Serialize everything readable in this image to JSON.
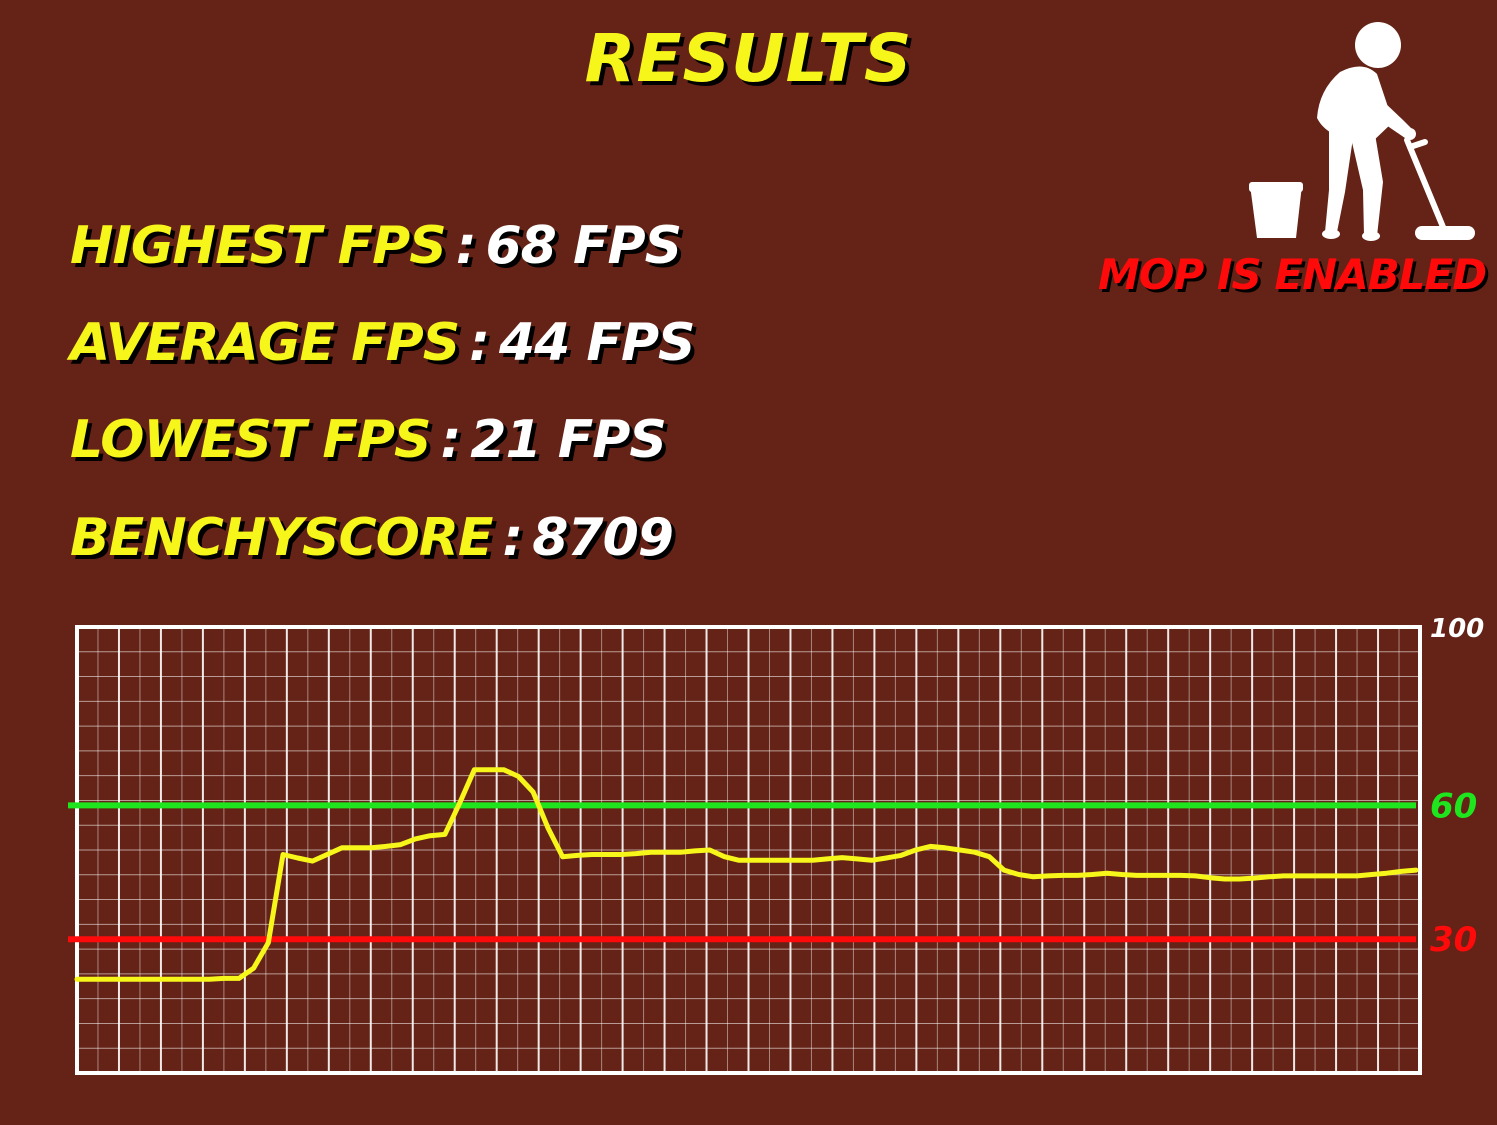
{
  "title": "RESULTS",
  "stats": [
    {
      "label": "HIGHEST FPS",
      "sep": ":",
      "value": "68 FPS"
    },
    {
      "label": "AVERAGE FPS",
      "sep": ":",
      "value": "44 FPS"
    },
    {
      "label": "LOWEST FPS",
      "sep": ":",
      "value": "21 FPS"
    },
    {
      "label": "BENCHYSCORE",
      "sep": ":",
      "value": "8709"
    }
  ],
  "mop": {
    "status": "MOP IS ENABLED",
    "icon": "janitor-mop-bucket-icon"
  },
  "colors": {
    "background": "#642316",
    "accent": "#f7f61a",
    "good": "#1ee51e",
    "bad": "#ff0a0a",
    "line": "#f7f61a"
  },
  "chart_data": {
    "type": "line",
    "ylim": [
      0,
      100
    ],
    "y_tick_labels": [
      "100",
      "60",
      "30"
    ],
    "thresholds": [
      {
        "value": 60,
        "label": "60",
        "color": "#1ee51e"
      },
      {
        "value": 30,
        "label": "30",
        "color": "#ff0a0a"
      }
    ],
    "grid": true,
    "series": [
      {
        "values": [
          21,
          21,
          21,
          21,
          21,
          21,
          21,
          21,
          21,
          21,
          21.2,
          21.2,
          23.5,
          29.2,
          49,
          48.2,
          47.5,
          49,
          50.5,
          50.5,
          50.5,
          50.8,
          51.2,
          52.5,
          53.2,
          53.5,
          60.5,
          68,
          68,
          68,
          66.5,
          63,
          55,
          48.5,
          48.8,
          49,
          49,
          49,
          49.2,
          49.5,
          49.5,
          49.5,
          49.8,
          50,
          48.5,
          47.7,
          47.7,
          47.7,
          47.7,
          47.7,
          47.7,
          48,
          48.3,
          48,
          47.7,
          48.2,
          48.8,
          50,
          50.8,
          50.5,
          50,
          49.5,
          48.5,
          45.5,
          44.5,
          44,
          44.2,
          44.3,
          44.3,
          44.5,
          44.8,
          44.5,
          44.3,
          44.3,
          44.3,
          44.3,
          44.2,
          43.8,
          43.5,
          43.5,
          43.7,
          44,
          44.2,
          44.2,
          44.2,
          44.2,
          44.2,
          44.2,
          44.5,
          44.8,
          45.2,
          45.5
        ]
      }
    ]
  }
}
